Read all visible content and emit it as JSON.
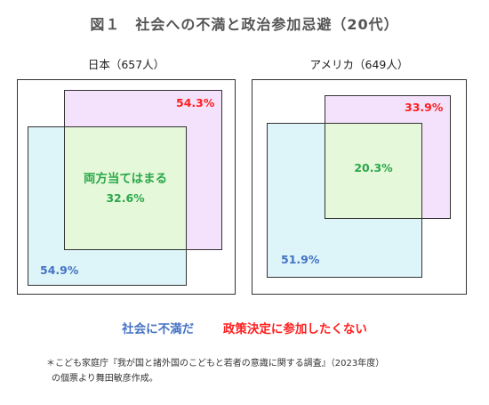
{
  "title": "図１　社会への不満と政治参加忌避（20代）",
  "panels": [
    {
      "heading": "日本（657人）",
      "overlap_label": "両方当てはまる"
    },
    {
      "heading": "アメリカ（649人）"
    }
  ],
  "legend": {
    "dissatisfied": "社会に不満だ",
    "avoid": "政策決定に参加したくない"
  },
  "note": {
    "line1": "＊こども家庭庁『我が国と諸外国のこどもと若者の意識に関する調査』（2023年度）",
    "line2": "の個票より舞田敏彦作成。"
  },
  "colors": {
    "dissatisfied": "#4472c4",
    "avoid": "#ff1f1f",
    "both": "#2aa84a"
  },
  "chart_data": [
    {
      "type": "venn",
      "title": "日本（657人）",
      "sets": [
        {
          "name": "社会に不満だ",
          "value": 54.9,
          "unit": "%"
        },
        {
          "name": "政策決定に参加したくない",
          "value": 54.3,
          "unit": "%"
        }
      ],
      "overlap": {
        "name": "両方当てはまる",
        "value": 32.6,
        "unit": "%"
      }
    },
    {
      "type": "venn",
      "title": "アメリカ（649人）",
      "sets": [
        {
          "name": "社会に不満だ",
          "value": 51.9,
          "unit": "%"
        },
        {
          "name": "政策決定に参加したくない",
          "value": 33.9,
          "unit": "%"
        }
      ],
      "overlap": {
        "value": 20.3,
        "unit": "%"
      }
    }
  ]
}
